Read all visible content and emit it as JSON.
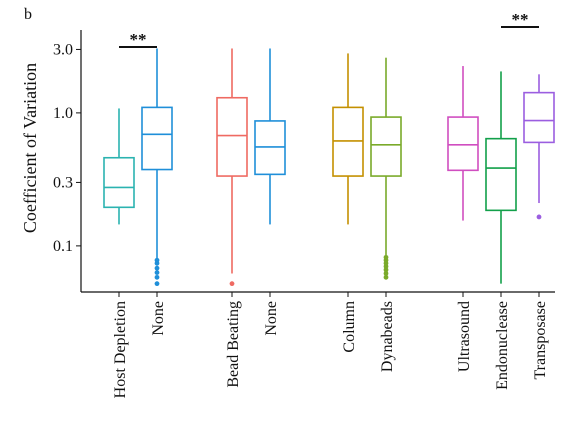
{
  "panel_label": "b",
  "chart_data": {
    "type": "box",
    "title": "",
    "xlabel": "",
    "ylabel": "Coefficient of Variation",
    "yscale": "log",
    "ylim": [
      0.045,
      4.2
    ],
    "yticks": [
      0.1,
      0.3,
      1.0,
      3.0
    ],
    "ytick_labels": [
      "0.1",
      "0.3",
      "1.0",
      "3.0"
    ],
    "categories": [
      "Host Depletion",
      "None",
      "Bead Beating",
      "None",
      "Column",
      "Dynabeads",
      "Ultrasound",
      "Endonuclease",
      "Transposase"
    ],
    "colors": [
      "#2bb3b0",
      "#1f8fd9",
      "#ef6a62",
      "#1f8fd9",
      "#c49000",
      "#7aaa2a",
      "#d04ec0",
      "#12a04a",
      "#9b5ee0"
    ],
    "boxes": [
      {
        "min": 0.145,
        "q1": 0.195,
        "median": 0.275,
        "q3": 0.46,
        "max": 1.08,
        "outliers": []
      },
      {
        "min": 0.078,
        "q1": 0.375,
        "median": 0.69,
        "q3": 1.1,
        "max": 3.05,
        "outliers": [
          0.052,
          0.058,
          0.063,
          0.068,
          0.074,
          0.078
        ]
      },
      {
        "min": 0.062,
        "q1": 0.335,
        "median": 0.675,
        "q3": 1.3,
        "max": 3.05,
        "outliers": [
          0.052
        ]
      },
      {
        "min": 0.145,
        "q1": 0.345,
        "median": 0.555,
        "q3": 0.87,
        "max": 3.05,
        "outliers": []
      },
      {
        "min": 0.145,
        "q1": 0.335,
        "median": 0.615,
        "q3": 1.1,
        "max": 2.8,
        "outliers": []
      },
      {
        "min": 0.085,
        "q1": 0.335,
        "median": 0.575,
        "q3": 0.93,
        "max": 2.6,
        "outliers": [
          0.058,
          0.062,
          0.066,
          0.07,
          0.074,
          0.078,
          0.082
        ]
      },
      {
        "min": 0.155,
        "q1": 0.37,
        "median": 0.575,
        "q3": 0.93,
        "max": 2.25,
        "outliers": []
      },
      {
        "min": 0.052,
        "q1": 0.185,
        "median": 0.385,
        "q3": 0.64,
        "max": 2.05,
        "outliers": []
      },
      {
        "min": 0.21,
        "q1": 0.6,
        "median": 0.875,
        "q3": 1.42,
        "max": 1.95,
        "outliers": [
          0.165
        ]
      }
    ],
    "annotations": [
      {
        "text": "**",
        "between": [
          0,
          1
        ]
      },
      {
        "text": "**",
        "between": [
          7,
          8
        ]
      }
    ]
  }
}
